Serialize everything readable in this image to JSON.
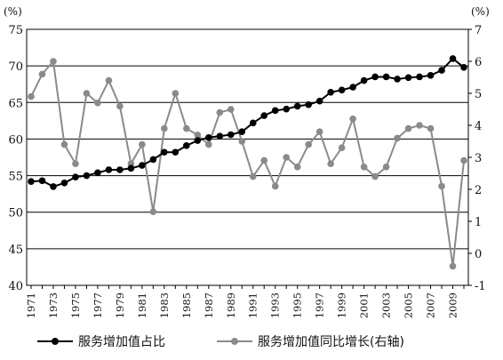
{
  "chart_data": {
    "type": "line",
    "left_unit": "(%)",
    "right_unit": "(%)",
    "x": [
      1971,
      1972,
      1973,
      1974,
      1975,
      1976,
      1977,
      1978,
      1979,
      1980,
      1981,
      1982,
      1983,
      1984,
      1985,
      1986,
      1987,
      1988,
      1989,
      1990,
      1991,
      1992,
      1993,
      1994,
      1995,
      1996,
      1997,
      1998,
      1999,
      2000,
      2001,
      2002,
      2003,
      2004,
      2005,
      2006,
      2007,
      2008,
      2009,
      2010
    ],
    "x_tick_labels": [
      "1971",
      "1973",
      "1975",
      "1977",
      "1979",
      "1981",
      "1983",
      "1985",
      "1987",
      "1989",
      "1991",
      "1993",
      "1995",
      "1997",
      "1999",
      "2001",
      "2003",
      "2005",
      "2007",
      "2009"
    ],
    "y_left_ticks": [
      "40",
      "45",
      "50",
      "55",
      "60",
      "65",
      "70",
      "75"
    ],
    "y_left_lim": [
      40,
      75
    ],
    "y_right_ticks": [
      "-1",
      "0",
      "1",
      "2",
      "3",
      "4",
      "5",
      "6",
      "7"
    ],
    "y_right_lim": [
      -1,
      7
    ],
    "grid": "horizontal",
    "legend_position": "bottom",
    "series": [
      {
        "name": "服务增加值占比",
        "axis": "left",
        "color": "#000000",
        "values": [
          54.2,
          54.3,
          53.5,
          54.0,
          54.8,
          55.0,
          55.4,
          55.8,
          55.8,
          56.0,
          56.4,
          57.2,
          58.2,
          58.2,
          59.1,
          59.8,
          60.2,
          60.4,
          60.6,
          61.0,
          62.2,
          63.2,
          63.9,
          64.1,
          64.5,
          64.7,
          65.2,
          66.4,
          66.7,
          67.1,
          68.0,
          68.5,
          68.5,
          68.2,
          68.4,
          68.5,
          68.7,
          69.4,
          71.0,
          69.8
        ]
      },
      {
        "name": "服务增加值同比增长(右轴)",
        "axis": "right",
        "color": "#8a8a8a",
        "values": [
          4.9,
          5.6,
          6.0,
          3.4,
          2.8,
          5.0,
          4.7,
          5.4,
          4.6,
          2.8,
          3.4,
          1.3,
          3.9,
          5.0,
          3.9,
          3.7,
          3.4,
          4.4,
          4.5,
          3.5,
          2.4,
          2.9,
          2.1,
          3.0,
          2.7,
          3.4,
          3.8,
          2.8,
          3.3,
          4.2,
          2.7,
          2.4,
          2.7,
          3.6,
          3.9,
          4.0,
          3.9,
          2.1,
          -0.4,
          2.9
        ]
      }
    ]
  }
}
